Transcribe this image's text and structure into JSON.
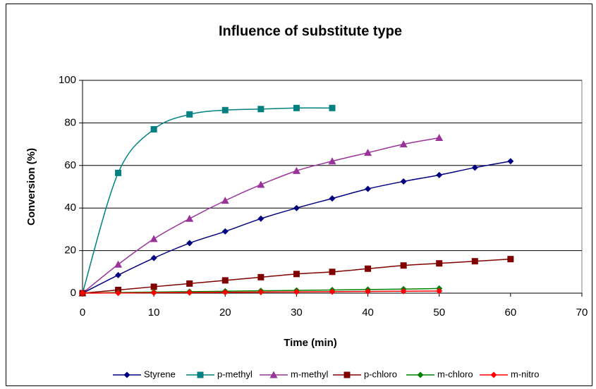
{
  "chart_data": {
    "type": "line",
    "title": "Influence of substitute type",
    "xlabel": "Time (min)",
    "ylabel": "Conversion (%)",
    "xlim": [
      0,
      70
    ],
    "xticks": [
      0,
      10,
      20,
      30,
      40,
      50,
      60,
      70
    ],
    "ylim": [
      0,
      100
    ],
    "yticks": [
      0,
      20,
      40,
      60,
      80,
      100
    ],
    "grid": true,
    "smooth": true,
    "legend": "bottom",
    "series": [
      {
        "name": "Styrene",
        "color": "#000080",
        "marker": "diamond",
        "x": [
          0,
          5,
          10,
          15,
          20,
          25,
          30,
          35,
          40,
          45,
          50,
          55,
          60
        ],
        "values": [
          0,
          8.5,
          16.5,
          23.5,
          29,
          35,
          40,
          44.5,
          49,
          52.5,
          55.5,
          59,
          62
        ]
      },
      {
        "name": "p-methyl",
        "color": "#008080",
        "marker": "square",
        "x": [
          0,
          5,
          10,
          15,
          20,
          25,
          30,
          35
        ],
        "values": [
          0,
          56.5,
          77,
          84,
          86,
          86.5,
          87,
          87
        ]
      },
      {
        "name": "m-methyl",
        "color": "#993399",
        "marker": "triangle",
        "x": [
          0,
          5,
          10,
          15,
          20,
          25,
          30,
          35,
          40,
          45,
          50
        ],
        "values": [
          0,
          13.5,
          25.5,
          35,
          43.5,
          51,
          57.5,
          62,
          66,
          70,
          73
        ]
      },
      {
        "name": "p-chloro",
        "color": "#800000",
        "marker": "square",
        "x": [
          0,
          5,
          10,
          15,
          20,
          25,
          30,
          35,
          40,
          45,
          50,
          55,
          60
        ],
        "values": [
          0,
          1.5,
          3,
          4.5,
          6,
          7.5,
          9,
          10,
          11.5,
          13,
          14,
          15,
          16
        ]
      },
      {
        "name": "m-chloro",
        "color": "#008000",
        "marker": "diamond",
        "x": [
          0,
          5,
          10,
          15,
          20,
          25,
          30,
          35,
          40,
          45,
          50
        ],
        "values": [
          0,
          0.3,
          0.5,
          0.7,
          0.9,
          1.1,
          1.3,
          1.5,
          1.7,
          1.9,
          2.2
        ]
      },
      {
        "name": "m-nitro",
        "color": "#ff0000",
        "marker": "diamond",
        "x": [
          0,
          5,
          10,
          15,
          20,
          25,
          30,
          35,
          40,
          45,
          50
        ],
        "values": [
          0,
          0.1,
          0.2,
          0.3,
          0.4,
          0.5,
          0.6,
          0.7,
          0.8,
          0.9,
          1.0
        ]
      }
    ]
  }
}
